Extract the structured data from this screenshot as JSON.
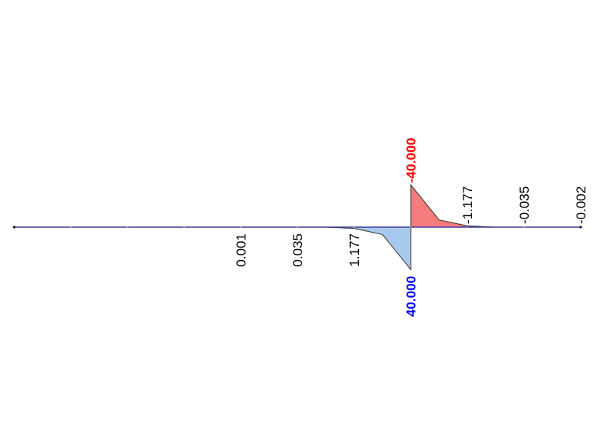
{
  "colors": {
    "axis": "#3d3d9e",
    "positive_fill": "#a8c8ee",
    "negative_fill": "#f47c7c",
    "outline": "#333333",
    "positive_label": "#0000ff",
    "negative_label": "#ff0000",
    "label": "#000000"
  },
  "diagram": {
    "node_count": 11,
    "positive_region": [
      {
        "node": 5.5,
        "value": 0.04
      },
      {
        "node": 6,
        "value": 1.177
      },
      {
        "node": 6.5,
        "value": 6.9
      },
      {
        "node": 7,
        "value": 40.0
      }
    ],
    "negative_region": [
      {
        "node": 7,
        "value": -40.0
      },
      {
        "node": 7.5,
        "value": -6.9
      },
      {
        "node": 8,
        "value": -1.177
      },
      {
        "node": 8.5,
        "value": -0.04
      }
    ],
    "labels": [
      {
        "node": 4,
        "text": "0.001",
        "side": "below",
        "kind": "normal"
      },
      {
        "node": 5,
        "text": "0.035",
        "side": "below",
        "kind": "normal"
      },
      {
        "node": 6,
        "text": "1.177",
        "side": "below",
        "kind": "normal"
      },
      {
        "node": 7,
        "text": "40.000",
        "side": "below",
        "kind": "positive"
      },
      {
        "node": 7,
        "text": "-40.000",
        "side": "above",
        "kind": "negative"
      },
      {
        "node": 8,
        "text": "-1.177",
        "side": "above",
        "kind": "normal"
      },
      {
        "node": 9,
        "text": "-0.035",
        "side": "above",
        "kind": "normal"
      },
      {
        "node": 10,
        "text": "-0.002",
        "side": "above",
        "kind": "normal"
      }
    ]
  }
}
